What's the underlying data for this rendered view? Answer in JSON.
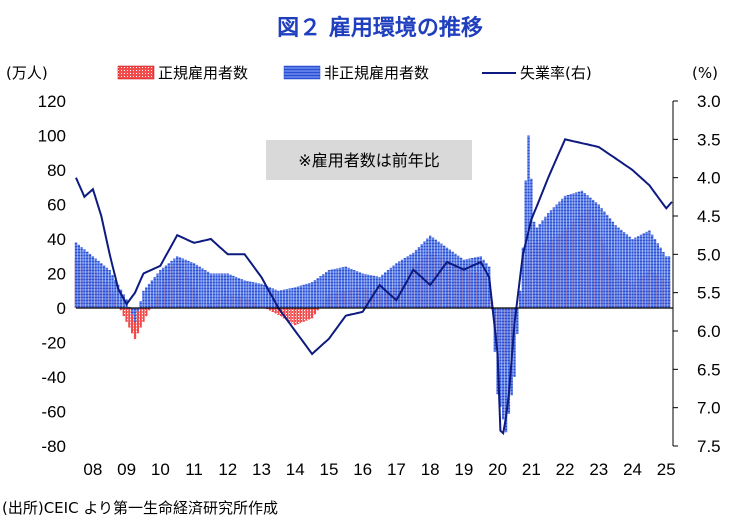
{
  "chart_data": {
    "type": "bar",
    "title": "図２ 雇用環境の推移",
    "left_unit": "(万人)",
    "right_unit": "(%)",
    "note": "※雇用者数は前年比",
    "source": "(出所)CEIC より第一生命経済研究所作成",
    "legend": [
      {
        "label": "正規雇用者数",
        "swatch": "red-dotted"
      },
      {
        "label": "非正規雇用者数",
        "swatch": "blue-lined"
      },
      {
        "label": "失業率(右)",
        "swatch": "navy-line"
      }
    ],
    "y_left": {
      "min": -80,
      "max": 120,
      "ticks": [
        120,
        100,
        80,
        60,
        40,
        20,
        0,
        -20,
        -40,
        -60,
        -80
      ],
      "ticks_text": [
        "120",
        "100",
        "80",
        "60",
        "40",
        "20",
        "0",
        "-20",
        "-40",
        "-60",
        "-80"
      ]
    },
    "y_right": {
      "min": 3.0,
      "max": 7.5,
      "inverted": true,
      "ticks": [
        3.0,
        3.5,
        4.0,
        4.5,
        5.0,
        5.5,
        6.0,
        6.5,
        7.0,
        7.5
      ],
      "ticks_text": [
        "3.0",
        "3.5",
        "4.0",
        "4.5",
        "5.0",
        "5.5",
        "6.0",
        "6.5",
        "7.0",
        "7.5"
      ]
    },
    "x": {
      "start_year": 2008,
      "end_year": 2025.7,
      "tick_labels": [
        "08",
        "09",
        "10",
        "11",
        "12",
        "13",
        "14",
        "15",
        "16",
        "17",
        "18",
        "19",
        "20",
        "21",
        "22",
        "23",
        "24",
        "25"
      ]
    },
    "series": [
      {
        "name": "正規雇用者数",
        "unit": "万人 (前年比)",
        "points": [
          [
            2008.0,
            28
          ],
          [
            2008.5,
            22
          ],
          [
            2009.0,
            12
          ],
          [
            2009.5,
            -8
          ],
          [
            2009.75,
            -18
          ],
          [
            2010.0,
            -8
          ],
          [
            2010.25,
            2
          ],
          [
            2010.5,
            10
          ],
          [
            2010.75,
            22
          ],
          [
            2011.0,
            28
          ],
          [
            2011.25,
            22
          ],
          [
            2011.5,
            12
          ],
          [
            2011.75,
            0
          ],
          [
            2012.0,
            3
          ],
          [
            2012.5,
            8
          ],
          [
            2013.0,
            6
          ],
          [
            2013.5,
            1
          ],
          [
            2014.0,
            -4
          ],
          [
            2014.5,
            -10
          ],
          [
            2015.0,
            -6
          ],
          [
            2015.5,
            8
          ],
          [
            2016.0,
            10
          ],
          [
            2016.5,
            12
          ],
          [
            2017.0,
            8
          ],
          [
            2017.5,
            12
          ],
          [
            2018.0,
            25
          ],
          [
            2018.5,
            32
          ],
          [
            2019.0,
            28
          ],
          [
            2019.5,
            22
          ],
          [
            2020.0,
            20
          ],
          [
            2020.25,
            16
          ],
          [
            2020.5,
            -20
          ],
          [
            2020.75,
            -32
          ],
          [
            2021.0,
            -12
          ],
          [
            2021.25,
            8
          ],
          [
            2021.5,
            38
          ],
          [
            2022.0,
            38
          ],
          [
            2022.5,
            45
          ],
          [
            2023.0,
            55
          ],
          [
            2023.25,
            58
          ],
          [
            2023.5,
            45
          ],
          [
            2024.0,
            22
          ],
          [
            2024.5,
            14
          ],
          [
            2025.0,
            22
          ],
          [
            2025.5,
            16
          ]
        ]
      },
      {
        "name": "非正規雇用者数",
        "unit": "万人 (前年比)",
        "points": [
          [
            2008.0,
            38
          ],
          [
            2008.5,
            30
          ],
          [
            2009.0,
            22
          ],
          [
            2009.5,
            5
          ],
          [
            2009.75,
            -8
          ],
          [
            2010.0,
            10
          ],
          [
            2010.5,
            22
          ],
          [
            2011.0,
            30
          ],
          [
            2011.5,
            26
          ],
          [
            2012.0,
            20
          ],
          [
            2012.5,
            20
          ],
          [
            2013.0,
            16
          ],
          [
            2013.5,
            14
          ],
          [
            2014.0,
            10
          ],
          [
            2014.5,
            12
          ],
          [
            2015.0,
            15
          ],
          [
            2015.5,
            22
          ],
          [
            2016.0,
            24
          ],
          [
            2016.5,
            20
          ],
          [
            2017.0,
            18
          ],
          [
            2017.5,
            26
          ],
          [
            2018.0,
            32
          ],
          [
            2018.5,
            42
          ],
          [
            2019.0,
            35
          ],
          [
            2019.5,
            28
          ],
          [
            2020.0,
            30
          ],
          [
            2020.25,
            24
          ],
          [
            2020.5,
            -50
          ],
          [
            2020.75,
            -72
          ],
          [
            2021.0,
            -40
          ],
          [
            2021.25,
            35
          ],
          [
            2021.4,
            105
          ],
          [
            2021.6,
            45
          ],
          [
            2022.0,
            55
          ],
          [
            2022.5,
            65
          ],
          [
            2023.0,
            68
          ],
          [
            2023.5,
            60
          ],
          [
            2024.0,
            48
          ],
          [
            2024.5,
            40
          ],
          [
            2025.0,
            45
          ],
          [
            2025.5,
            30
          ]
        ]
      },
      {
        "name": "失業率(右)",
        "unit": "%",
        "points": [
          [
            2008.0,
            4.0
          ],
          [
            2008.25,
            4.25
          ],
          [
            2008.5,
            4.15
          ],
          [
            2008.75,
            4.5
          ],
          [
            2009.0,
            5.0
          ],
          [
            2009.25,
            5.45
          ],
          [
            2009.5,
            5.65
          ],
          [
            2009.75,
            5.5
          ],
          [
            2010.0,
            5.25
          ],
          [
            2010.5,
            5.15
          ],
          [
            2011.0,
            4.75
          ],
          [
            2011.5,
            4.85
          ],
          [
            2012.0,
            4.8
          ],
          [
            2012.5,
            5.0
          ],
          [
            2013.0,
            5.0
          ],
          [
            2013.5,
            5.3
          ],
          [
            2014.0,
            5.7
          ],
          [
            2014.5,
            6.0
          ],
          [
            2015.0,
            6.3
          ],
          [
            2015.5,
            6.1
          ],
          [
            2016.0,
            5.8
          ],
          [
            2016.5,
            5.75
          ],
          [
            2017.0,
            5.4
          ],
          [
            2017.5,
            5.6
          ],
          [
            2018.0,
            5.2
          ],
          [
            2018.5,
            5.4
          ],
          [
            2019.0,
            5.1
          ],
          [
            2019.5,
            5.2
          ],
          [
            2020.0,
            5.1
          ],
          [
            2020.25,
            5.3
          ],
          [
            2020.5,
            6.3
          ],
          [
            2020.6,
            7.5
          ],
          [
            2020.8,
            7.0
          ],
          [
            2021.0,
            5.9
          ],
          [
            2021.25,
            5.0
          ],
          [
            2021.5,
            4.55
          ],
          [
            2022.0,
            4.0
          ],
          [
            2022.5,
            3.5
          ],
          [
            2023.0,
            3.55
          ],
          [
            2023.5,
            3.6
          ],
          [
            2024.0,
            3.75
          ],
          [
            2024.5,
            3.9
          ],
          [
            2025.0,
            4.1
          ],
          [
            2025.5,
            4.4
          ],
          [
            2025.7,
            4.3
          ]
        ]
      }
    ]
  }
}
